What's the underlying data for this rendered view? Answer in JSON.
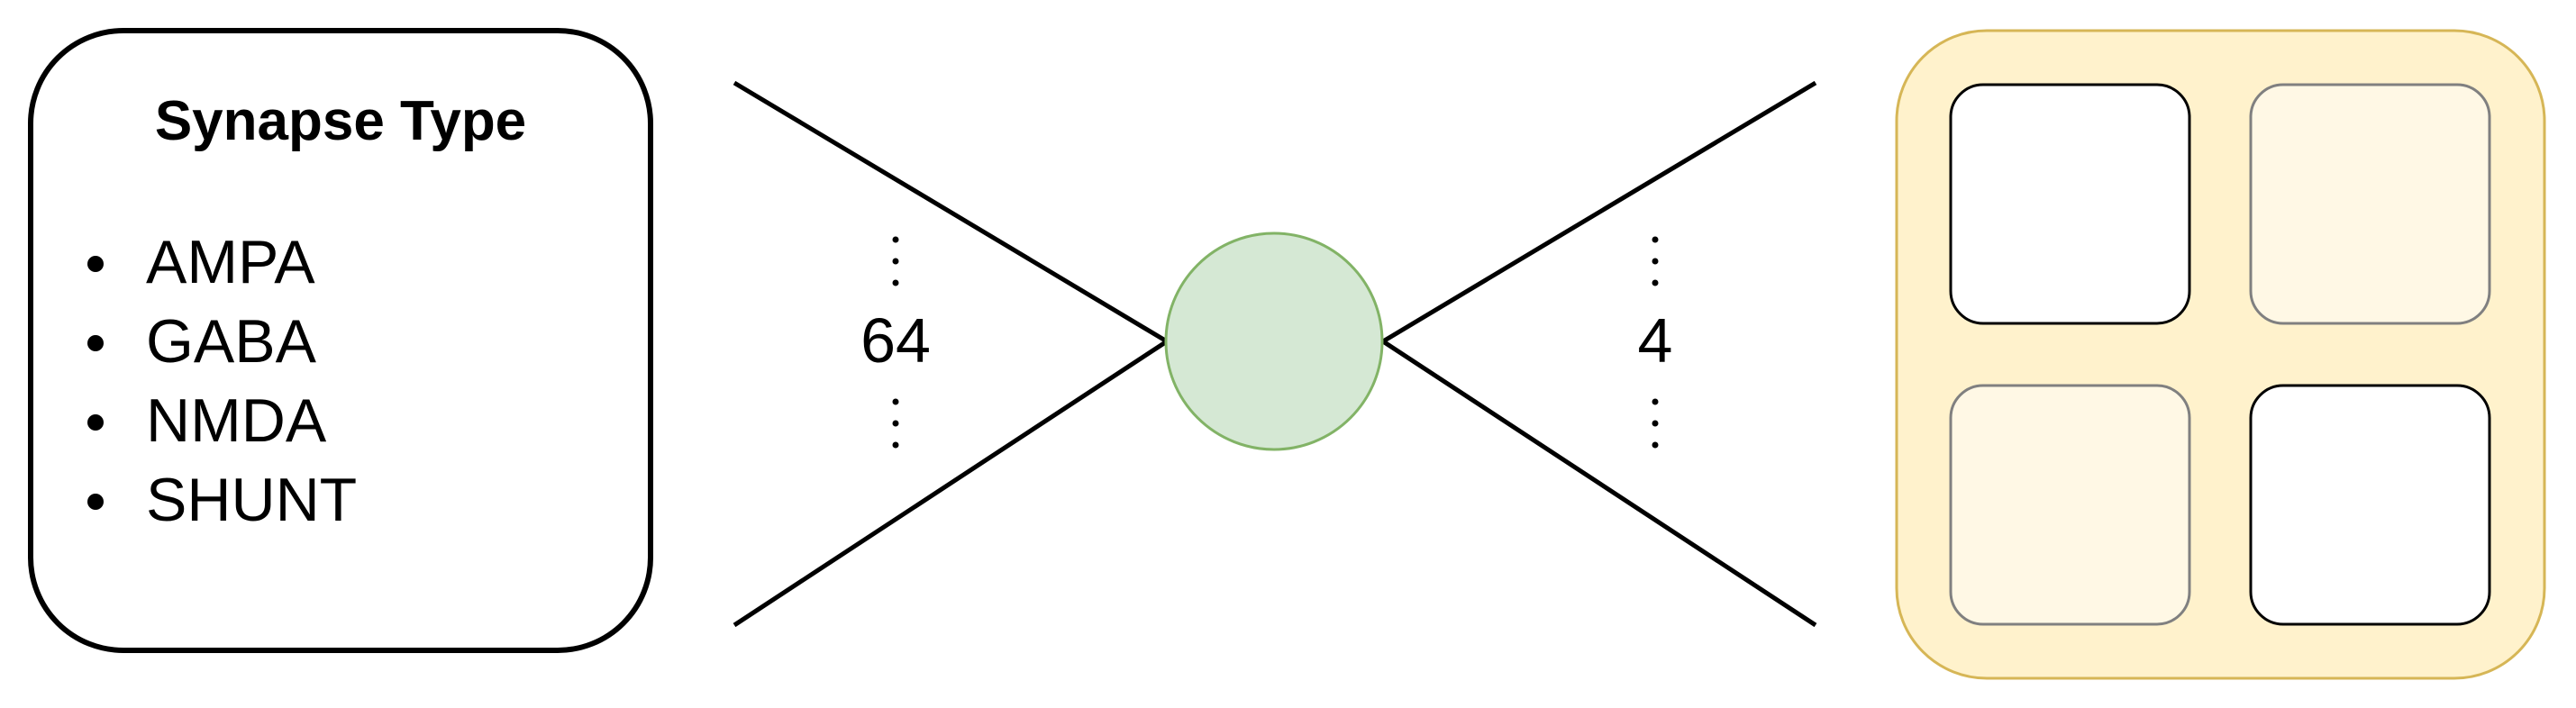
{
  "synapse_panel": {
    "title": "Synapse Type",
    "items": [
      "AMPA",
      "GABA",
      "NMDA",
      "SHUNT"
    ]
  },
  "fan_in": {
    "count_label": "64"
  },
  "fan_out": {
    "count_label": "4"
  },
  "colors": {
    "node_fill": "#d5e8d4",
    "node_stroke": "#82b366",
    "output_group_fill": "#fff2cc",
    "output_group_stroke": "#d6b656",
    "output_cell_faded_fill": "#fff8e5",
    "output_cell_faded_stroke": "#808080"
  }
}
